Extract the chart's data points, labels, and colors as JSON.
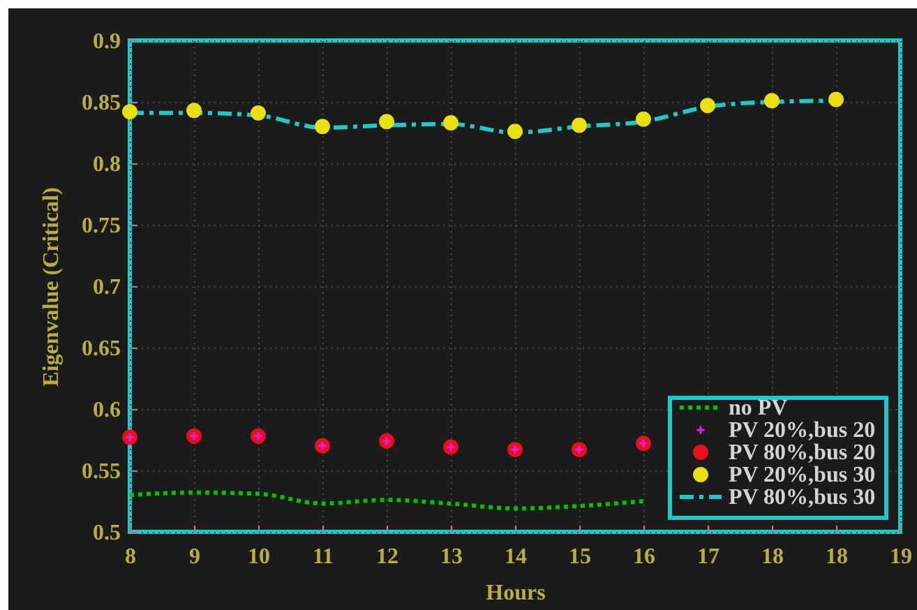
{
  "chart_data": {
    "type": "line",
    "xlabel": "Hours",
    "ylabel": "Eigenvalue (Critical)",
    "categories": [
      "8",
      "9",
      "10",
      "11",
      "12",
      "13",
      "14",
      "15",
      "16",
      "17",
      "18",
      "18",
      "19"
    ],
    "ylim": [
      0.5,
      0.9
    ],
    "yticks": [
      0.5,
      0.55,
      0.6,
      0.65,
      0.7,
      0.75,
      0.8,
      0.85,
      0.9
    ],
    "grid": true,
    "legend": "bottom right",
    "series": [
      {
        "name": "no PV",
        "type": "line",
        "line_style": "dotted",
        "color": "#00c000",
        "values": [
          0.53,
          0.532,
          0.531,
          0.523,
          0.526,
          0.523,
          0.519,
          0.521,
          0.525,
          null,
          null,
          null,
          null
        ]
      },
      {
        "name": "PV 20%,bus 20",
        "type": "scatter",
        "marker": "cross",
        "color": "#e020e0",
        "values": [
          0.577,
          0.578,
          0.578,
          0.57,
          0.574,
          0.569,
          0.567,
          0.567,
          0.572,
          null,
          null,
          null,
          null
        ]
      },
      {
        "name": "PV 80%,bus 20",
        "type": "scatter",
        "marker": "circle",
        "color": "#e8101e",
        "values": [
          0.577,
          0.578,
          0.578,
          0.57,
          0.574,
          0.569,
          0.567,
          0.567,
          0.572,
          null,
          null,
          null,
          null
        ]
      },
      {
        "name": "PV 20%,bus 30",
        "type": "scatter",
        "marker": "circle",
        "color": "#e8e010",
        "values": [
          0.842,
          0.843,
          0.841,
          0.83,
          0.834,
          0.833,
          0.826,
          0.831,
          0.836,
          0.847,
          0.851,
          0.852,
          null
        ]
      },
      {
        "name": "PV 80%,bus 30",
        "type": "line",
        "line_style": "dashed",
        "color": "#22c8c8",
        "values": [
          0.841,
          0.841,
          0.839,
          0.829,
          0.831,
          0.832,
          0.825,
          0.83,
          0.834,
          0.846,
          0.85,
          0.851,
          null
        ]
      }
    ]
  }
}
